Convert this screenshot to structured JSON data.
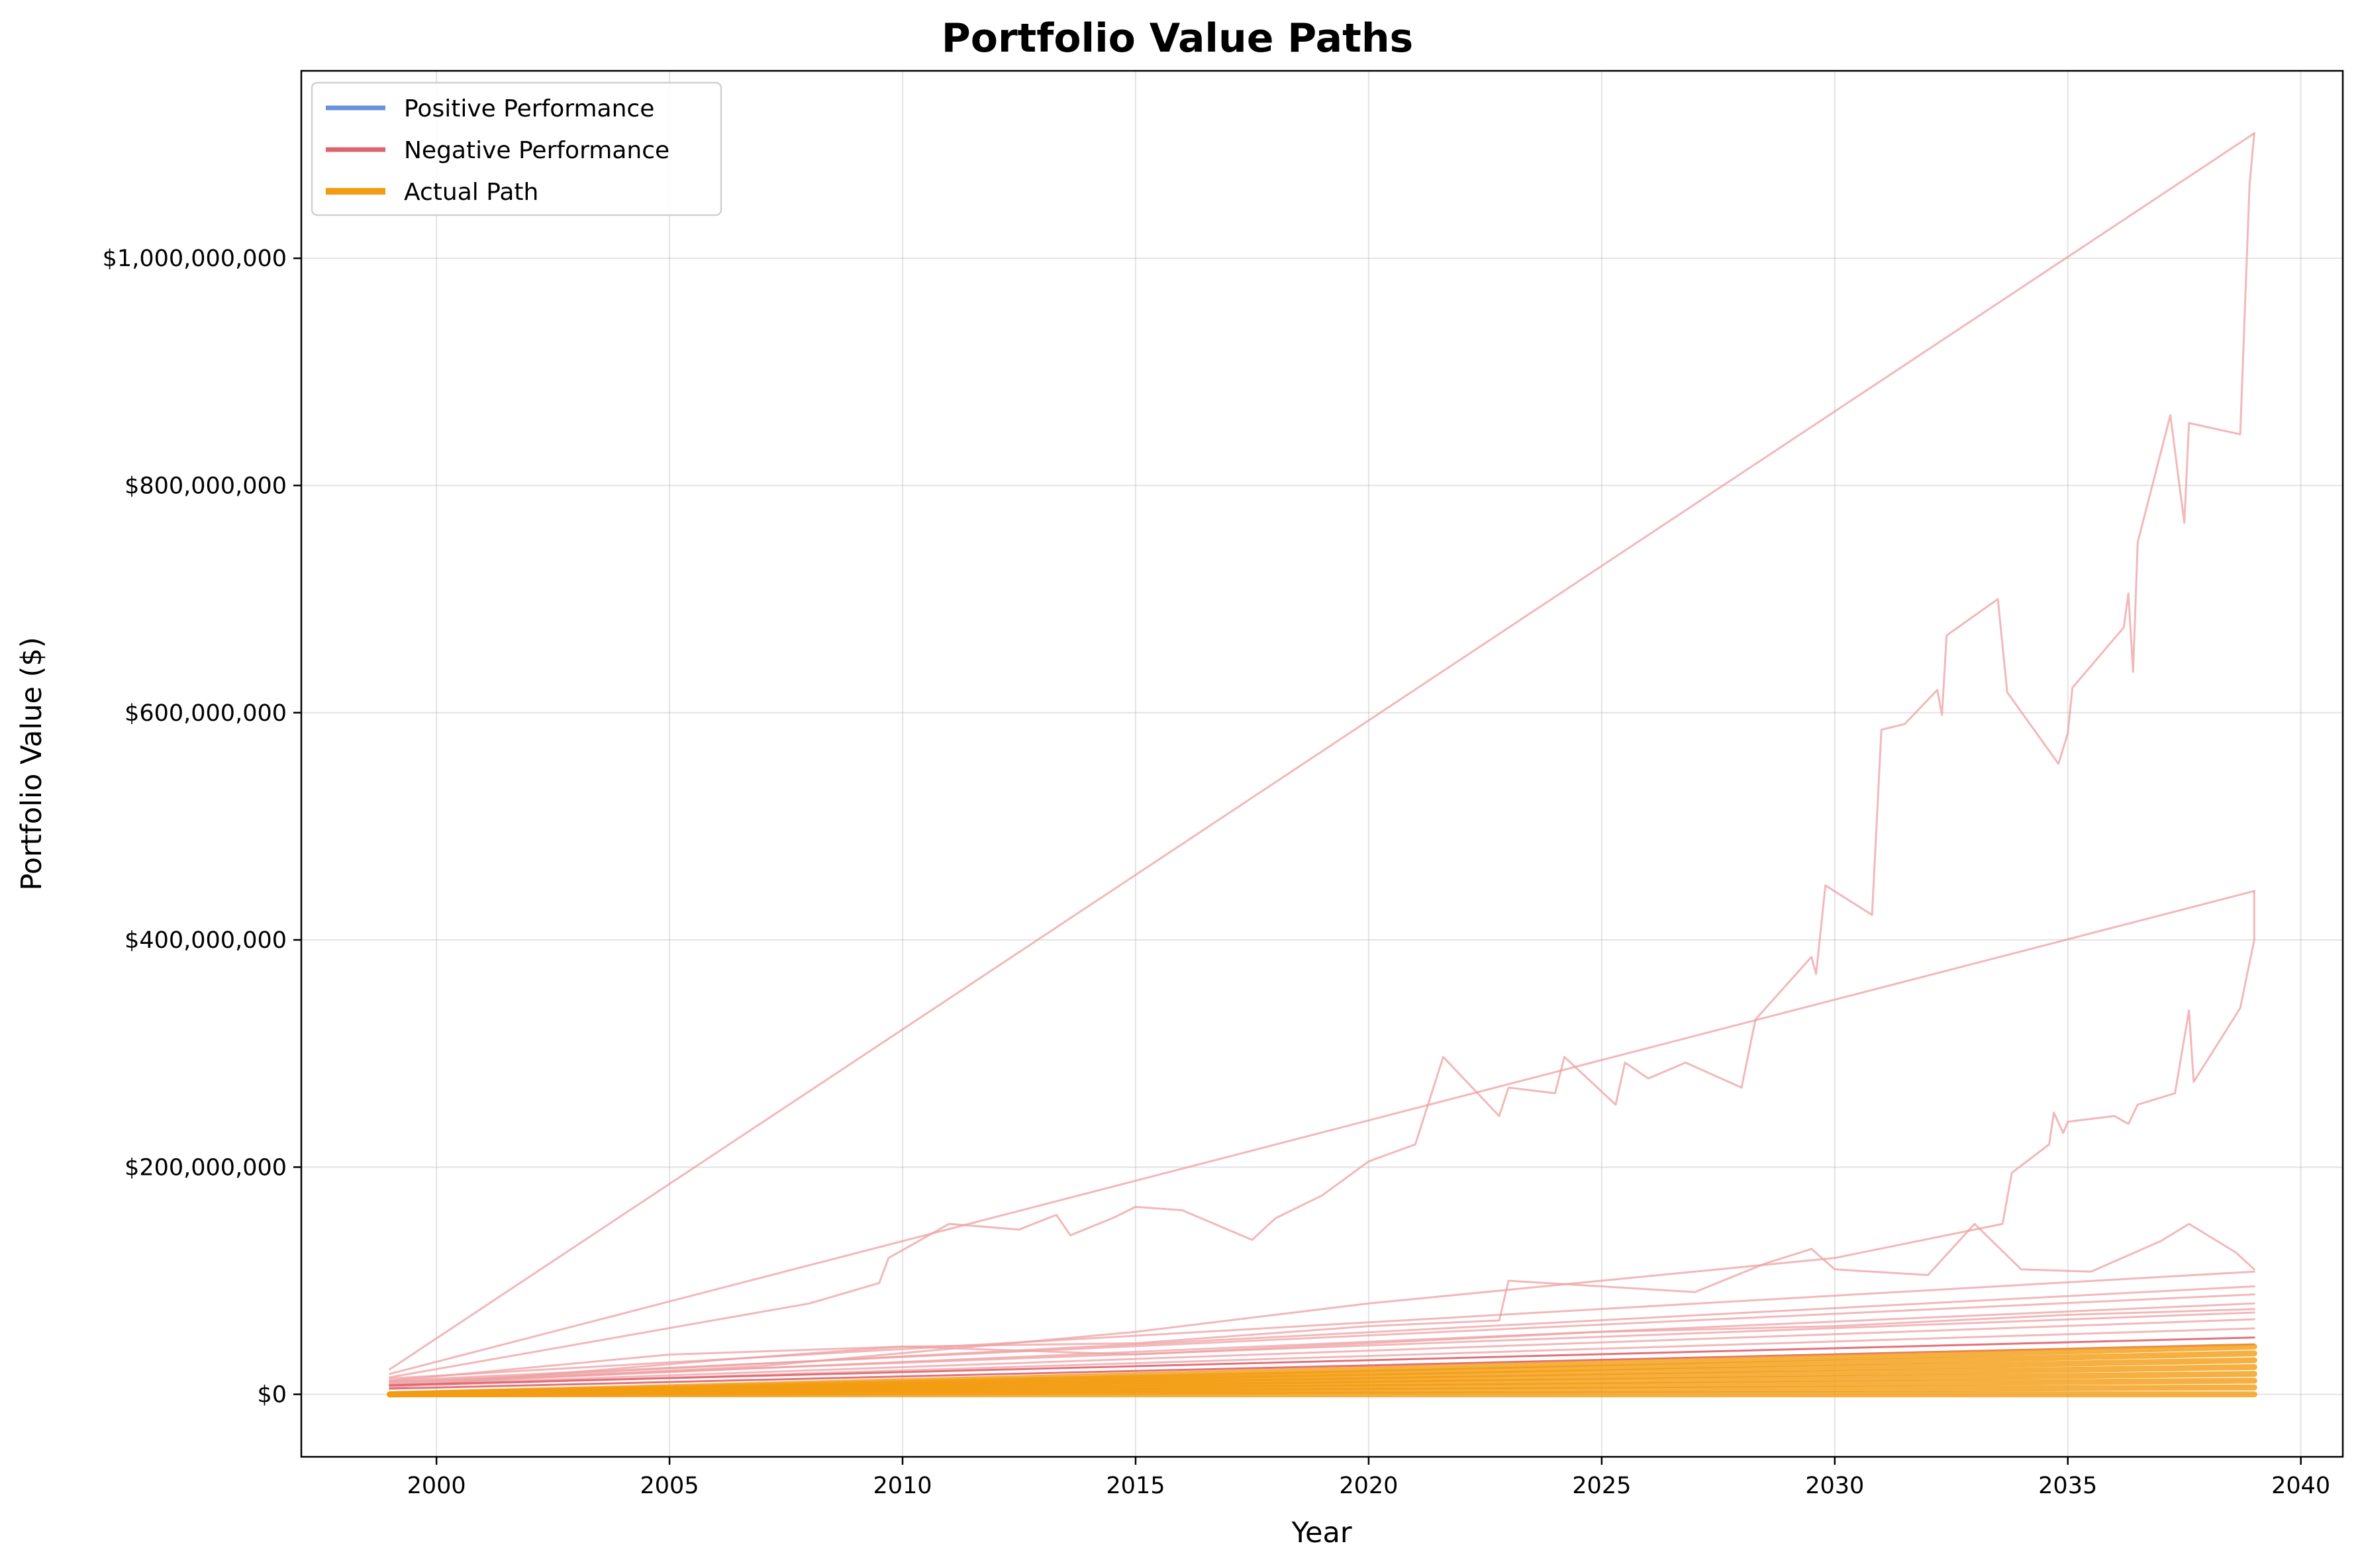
{
  "chart_data": {
    "type": "line",
    "title": "Portfolio Value Paths",
    "xlabel": "Year",
    "ylabel": "Portfolio Value ($)",
    "xlim": [
      1997.1,
      2040.9
    ],
    "ylim": [
      -55000000,
      1165000000
    ],
    "x_ticks": [
      2000,
      2005,
      2010,
      2015,
      2020,
      2025,
      2030,
      2035,
      2040
    ],
    "x_tick_labels": [
      "2000",
      "2005",
      "2010",
      "2015",
      "2020",
      "2025",
      "2030",
      "2035",
      "2040"
    ],
    "y_ticks": [
      0,
      200000000,
      400000000,
      600000000,
      800000000,
      1000000000
    ],
    "y_tick_labels": [
      "$0",
      "$200,000,000",
      "$400,000,000",
      "$600,000,000",
      "$800,000,000",
      "$1,000,000,000"
    ],
    "grid": true,
    "legend": {
      "position": "top-left",
      "entries": [
        {
          "label": "Positive Performance",
          "color": "#6a8fdc"
        },
        {
          "label": "Negative Performance",
          "color": "#dd636e"
        },
        {
          "label": "Actual Path",
          "color": "#f39c12"
        }
      ]
    },
    "series": [
      {
        "group": "negative",
        "color": "#eea0a3",
        "opacity": 0.75,
        "points": [
          [
            1999,
            22000000
          ],
          [
            2039,
            1110000000
          ]
        ]
      },
      {
        "group": "negative",
        "color": "#eea0a3",
        "opacity": 0.75,
        "points": [
          [
            1999,
            15000000
          ],
          [
            2008,
            80000000
          ],
          [
            2009.5,
            98000000
          ],
          [
            2009.7,
            120000000
          ],
          [
            2011,
            150000000
          ],
          [
            2012.5,
            145000000
          ],
          [
            2013.3,
            158000000
          ],
          [
            2013.6,
            140000000
          ],
          [
            2014.5,
            155000000
          ],
          [
            2015,
            165000000
          ],
          [
            2016,
            162000000
          ],
          [
            2017.5,
            136000000
          ],
          [
            2018,
            155000000
          ],
          [
            2019,
            175000000
          ],
          [
            2020,
            205000000
          ],
          [
            2021,
            220000000
          ],
          [
            2021.6,
            297000000
          ],
          [
            2022.8,
            245000000
          ],
          [
            2023,
            270000000
          ],
          [
            2024,
            265000000
          ],
          [
            2024.2,
            297000000
          ],
          [
            2025.3,
            255000000
          ],
          [
            2025.5,
            292000000
          ],
          [
            2026,
            278000000
          ],
          [
            2026.8,
            292000000
          ],
          [
            2028,
            270000000
          ],
          [
            2028.3,
            330000000
          ],
          [
            2029.5,
            385000000
          ],
          [
            2029.6,
            370000000
          ],
          [
            2029.8,
            448000000
          ],
          [
            2030.8,
            422000000
          ],
          [
            2031,
            585000000
          ],
          [
            2031.5,
            590000000
          ],
          [
            2032.2,
            620000000
          ],
          [
            2032.3,
            598000000
          ],
          [
            2032.4,
            668000000
          ],
          [
            2033.5,
            700000000
          ],
          [
            2033.7,
            618000000
          ],
          [
            2034.8,
            555000000
          ],
          [
            2035,
            582000000
          ],
          [
            2035.1,
            622000000
          ],
          [
            2036.2,
            675000000
          ],
          [
            2036.3,
            705000000
          ],
          [
            2036.4,
            636000000
          ],
          [
            2036.5,
            750000000
          ],
          [
            2037.2,
            862000000
          ],
          [
            2037.5,
            767000000
          ],
          [
            2037.6,
            855000000
          ],
          [
            2038.7,
            845000000
          ],
          [
            2038.9,
            1065000000
          ],
          [
            2039,
            1110000000
          ]
        ]
      },
      {
        "group": "negative",
        "color": "#eea0a3",
        "opacity": 0.75,
        "points": [
          [
            1999,
            18000000
          ],
          [
            2039,
            443000000
          ]
        ]
      },
      {
        "group": "negative",
        "color": "#eea0a3",
        "opacity": 0.75,
        "points": [
          [
            1999,
            8000000
          ],
          [
            2007,
            25000000
          ],
          [
            2015,
            55000000
          ],
          [
            2020,
            80000000
          ],
          [
            2030,
            120000000
          ],
          [
            2033.6,
            150000000
          ],
          [
            2033.8,
            195000000
          ],
          [
            2034.6,
            220000000
          ],
          [
            2034.7,
            248000000
          ],
          [
            2034.9,
            230000000
          ],
          [
            2035,
            240000000
          ],
          [
            2036,
            245000000
          ],
          [
            2036.3,
            238000000
          ],
          [
            2036.5,
            255000000
          ],
          [
            2037.3,
            265000000
          ],
          [
            2037.6,
            338000000
          ],
          [
            2037.7,
            275000000
          ],
          [
            2038.7,
            340000000
          ],
          [
            2039,
            400000000
          ],
          [
            2039,
            443000000
          ]
        ]
      },
      {
        "group": "negative",
        "color": "#eea0a3",
        "opacity": 0.75,
        "points": [
          [
            1999,
            12000000
          ],
          [
            2005,
            35000000
          ],
          [
            2010,
            42000000
          ],
          [
            2015,
            45000000
          ],
          [
            2020,
            60000000
          ],
          [
            2022.8,
            65000000
          ],
          [
            2023,
            100000000
          ],
          [
            2025,
            95000000
          ],
          [
            2027,
            90000000
          ],
          [
            2028.5,
            115000000
          ],
          [
            2029.5,
            128000000
          ],
          [
            2030,
            110000000
          ],
          [
            2032,
            105000000
          ],
          [
            2033,
            150000000
          ],
          [
            2034,
            110000000
          ],
          [
            2035.5,
            108000000
          ],
          [
            2037,
            135000000
          ],
          [
            2037.6,
            150000000
          ],
          [
            2038.6,
            125000000
          ],
          [
            2039,
            110000000
          ]
        ]
      },
      {
        "group": "negative",
        "color": "#eea0a3",
        "opacity": 0.75,
        "points": [
          [
            1999,
            14000000
          ],
          [
            2039,
            108000000
          ]
        ]
      },
      {
        "group": "negative",
        "color": "#eea0a3",
        "opacity": 0.75,
        "points": [
          [
            1999,
            10000000
          ],
          [
            2039,
            95000000
          ]
        ]
      },
      {
        "group": "negative",
        "color": "#eea0a3",
        "opacity": 0.75,
        "points": [
          [
            1999,
            12000000
          ],
          [
            2039,
            88000000
          ]
        ]
      },
      {
        "group": "negative",
        "color": "#eea0a3",
        "opacity": 0.75,
        "points": [
          [
            1999,
            9000000
          ],
          [
            2039,
            80000000
          ]
        ]
      },
      {
        "group": "negative",
        "color": "#eea0a3",
        "opacity": 0.75,
        "points": [
          [
            1999,
            11000000
          ],
          [
            2039,
            72000000
          ]
        ]
      },
      {
        "group": "negative",
        "color": "#eea0a3",
        "opacity": 0.75,
        "points": [
          [
            1999,
            8000000
          ],
          [
            2039,
            66000000
          ]
        ]
      },
      {
        "group": "negative",
        "color": "#eea0a3",
        "opacity": 0.75,
        "points": [
          [
            1999,
            6000000
          ],
          [
            2006,
            30000000
          ],
          [
            2010,
            42000000
          ],
          [
            2015,
            35000000
          ],
          [
            2020,
            45000000
          ],
          [
            2025,
            55000000
          ],
          [
            2030,
            60000000
          ],
          [
            2035,
            70000000
          ],
          [
            2039,
            75000000
          ]
        ]
      },
      {
        "group": "negative",
        "color": "#eea0a3",
        "opacity": 0.75,
        "points": [
          [
            1999,
            7000000
          ],
          [
            2039,
            58000000
          ]
        ]
      },
      {
        "group": "negative",
        "color": "#dd636e",
        "opacity": 0.9,
        "points": [
          [
            1999,
            8000000
          ],
          [
            2039,
            50000000
          ]
        ]
      },
      {
        "group": "negative",
        "color": "#dd636e",
        "opacity": 0.9,
        "points": [
          [
            1999,
            5000000
          ],
          [
            2039,
            44000000
          ]
        ]
      },
      {
        "group": "actual",
        "color": "#f39c12",
        "opacity": 0.8,
        "points": [
          [
            1999,
            0
          ],
          [
            2039,
            42000000
          ]
        ]
      },
      {
        "group": "actual",
        "color": "#f39c12",
        "opacity": 0.8,
        "points": [
          [
            1999,
            0
          ],
          [
            2039,
            36000000
          ]
        ]
      },
      {
        "group": "actual",
        "color": "#f39c12",
        "opacity": 0.8,
        "points": [
          [
            1999,
            0
          ],
          [
            2039,
            30000000
          ]
        ]
      },
      {
        "group": "actual",
        "color": "#f39c12",
        "opacity": 0.8,
        "points": [
          [
            1999,
            0
          ],
          [
            2039,
            24000000
          ]
        ]
      },
      {
        "group": "actual",
        "color": "#f39c12",
        "opacity": 0.8,
        "points": [
          [
            1999,
            0
          ],
          [
            2039,
            18000000
          ]
        ]
      },
      {
        "group": "actual",
        "color": "#f39c12",
        "opacity": 0.8,
        "points": [
          [
            1999,
            0
          ],
          [
            2039,
            12000000
          ]
        ]
      },
      {
        "group": "actual",
        "color": "#f39c12",
        "opacity": 0.8,
        "points": [
          [
            1999,
            0
          ],
          [
            2039,
            6000000
          ]
        ]
      },
      {
        "group": "actual",
        "color": "#f39c12",
        "opacity": 0.8,
        "points": [
          [
            1999,
            0
          ],
          [
            2039,
            0
          ]
        ]
      }
    ]
  }
}
